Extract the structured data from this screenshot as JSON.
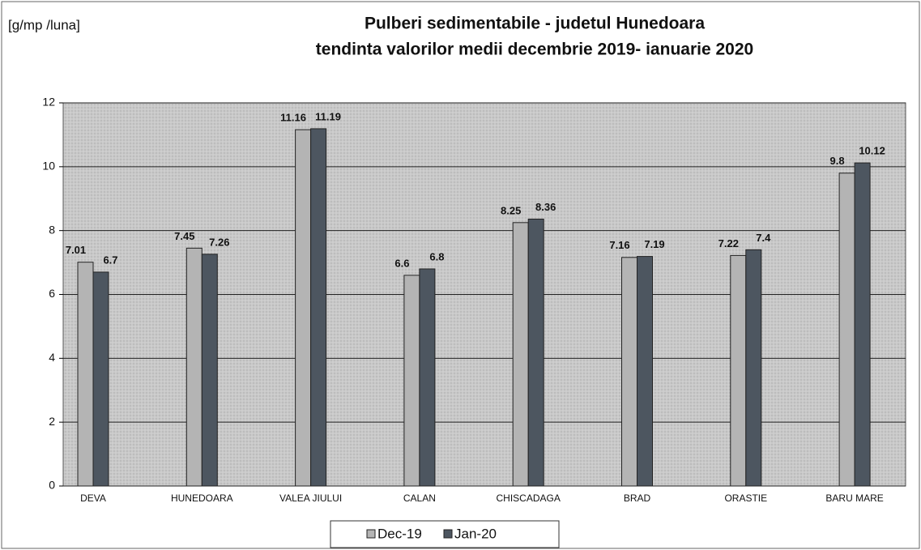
{
  "chart_data": {
    "type": "bar",
    "title": "Pulberi sedimentabile - judetul Hunedoara",
    "subtitle": "tendinta valorilor medii decembrie  2019- ianuarie 2020",
    "y_axis_label": "[g/mp /luna]",
    "categories": [
      "DEVA",
      "HUNEDOARA",
      "VALEA JIULUI",
      "CALAN",
      "CHISCADAGA",
      "BRAD",
      "ORASTIE",
      "BARU MARE"
    ],
    "series": [
      {
        "name": "Dec-19",
        "color": "#b4b4b4",
        "values": [
          7.01,
          7.45,
          11.16,
          6.6,
          8.25,
          7.16,
          7.22,
          9.8
        ]
      },
      {
        "name": "Jan-20",
        "color": "#4d5660",
        "values": [
          6.7,
          7.26,
          11.19,
          6.8,
          8.36,
          7.19,
          7.4,
          10.12
        ]
      }
    ],
    "ylim": [
      0,
      12
    ],
    "yticks": [
      0,
      2,
      4,
      6,
      8,
      10,
      12
    ],
    "grid": true,
    "legend": "bottom"
  }
}
